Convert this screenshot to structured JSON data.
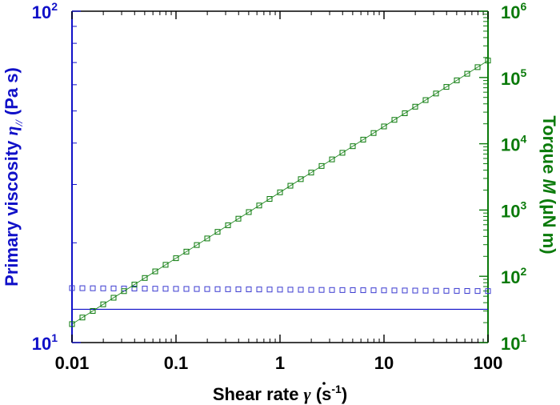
{
  "chart_data": {
    "type": "scatter",
    "x_axis": {
      "label_main": "Shear rate ",
      "label_symbol": "γ",
      "label_unit_open": " (s",
      "label_unit_exp": "-1",
      "label_unit_close": ")",
      "scale": "log",
      "range": [
        0.01,
        100
      ],
      "ticks": [
        {
          "value": 0.01,
          "label": "0.01"
        },
        {
          "value": 0.1,
          "label": "0.1"
        },
        {
          "value": 1,
          "label": "1"
        },
        {
          "value": 10,
          "label": "10"
        },
        {
          "value": 100,
          "label": "100"
        }
      ]
    },
    "y_left": {
      "label_main": "Primary viscosity ",
      "label_symbol": "η",
      "label_sub": "//",
      "label_unit": " (Pa s)",
      "scale": "log",
      "range": [
        10,
        100
      ],
      "color": "#1010c8",
      "ticks": [
        {
          "value": 10,
          "base": "10",
          "exp": "1"
        },
        {
          "value": 100,
          "base": "10",
          "exp": "2"
        }
      ]
    },
    "y_right": {
      "label_main": "Torque ",
      "label_symbol": "M",
      "label_unit": " (μN m)",
      "scale": "log",
      "range": [
        10,
        1000000
      ],
      "color": "#0a7a0a",
      "ticks": [
        {
          "value": 10,
          "base": "10",
          "exp": "1"
        },
        {
          "value": 100,
          "base": "10",
          "exp": "2"
        },
        {
          "value": 1000,
          "base": "10",
          "exp": "3"
        },
        {
          "value": 10000,
          "base": "10",
          "exp": "4"
        },
        {
          "value": 100000,
          "base": "10",
          "exp": "5"
        },
        {
          "value": 1000000,
          "base": "10",
          "exp": "6"
        }
      ]
    },
    "series": [
      {
        "name": "Primary viscosity",
        "axis": "left",
        "marker": "square-open",
        "color": "#3b3bd0",
        "x_start": 0.01,
        "x_end": 100,
        "count": 41,
        "y_start": 14.6,
        "y_end": 14.3
      },
      {
        "name": "Torque",
        "axis": "right",
        "marker": "square-open",
        "color": "#0a7a0a",
        "x_start": 0.01,
        "x_end": 100,
        "count": 41,
        "y_start": 19,
        "y_end": 180000
      }
    ],
    "reference_lines": [
      {
        "name": "viscosity-reference-line",
        "axis": "left",
        "y": 12.6,
        "color": "#1010c8"
      },
      {
        "name": "torque-fit-line",
        "axis": "right",
        "x": [
          0.01,
          100
        ],
        "y": [
          19,
          180000
        ],
        "color": "#0a7a0a"
      }
    ]
  }
}
